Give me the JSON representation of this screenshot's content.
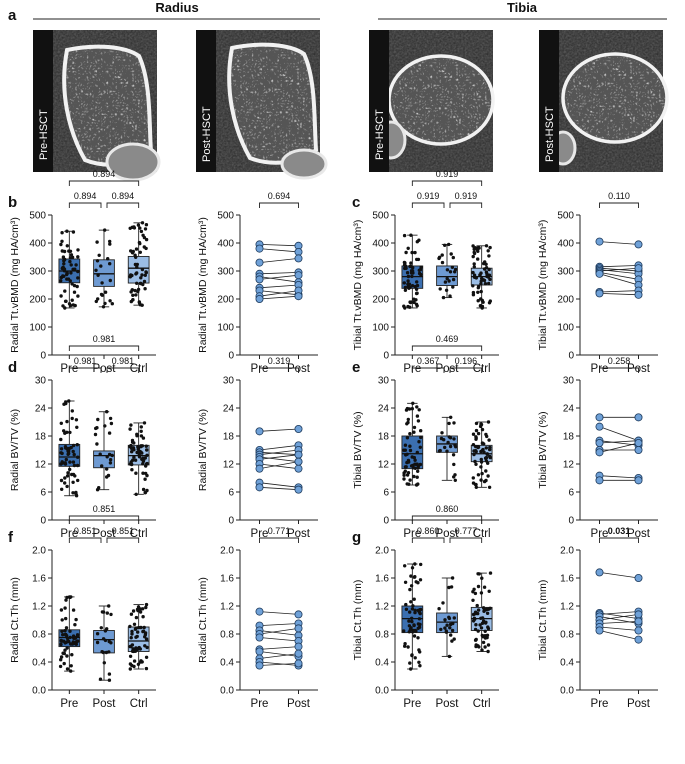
{
  "panel_a": {
    "letter": "a",
    "radius_label": "Radius",
    "tibia_label": "Tibia",
    "images": [
      {
        "group": "radius",
        "label": "Pre-HSCT"
      },
      {
        "group": "radius",
        "label": "Post-HSCT"
      },
      {
        "group": "tibia",
        "label": "Pre-HSCT"
      },
      {
        "group": "tibia",
        "label": "Post-HSCT"
      }
    ]
  },
  "colors": {
    "pre": "#3b6fb0",
    "post": "#6e9ad2",
    "ctrl": "#9bbde5",
    "paired": "#6fa1d8"
  },
  "chart_data": [
    {
      "id": "b-box",
      "panel": "b",
      "type": "box",
      "ylabel": "Radial Tt.vBMD (mg HA/cm³)",
      "ylim": [
        0,
        500
      ],
      "yticks": [
        0,
        100,
        200,
        300,
        400,
        500
      ],
      "categories": [
        "Pre",
        "Post",
        "Ctrl"
      ],
      "boxes": [
        {
          "min": 168,
          "q1": 258,
          "median": 300,
          "q3": 343,
          "max": 442,
          "n": 60
        },
        {
          "min": 172,
          "q1": 245,
          "median": 290,
          "q3": 340,
          "max": 446,
          "n": 22
        },
        {
          "min": 178,
          "q1": 257,
          "median": 310,
          "q3": 352,
          "max": 472,
          "n": 60
        }
      ],
      "pvalues": [
        {
          "from": 0,
          "to": 1,
          "label": "0.894",
          "bold": false
        },
        {
          "from": 1,
          "to": 2,
          "label": "0.894",
          "bold": false
        },
        {
          "from": 0,
          "to": 2,
          "label": "0.894",
          "bold": false
        }
      ]
    },
    {
      "id": "b-paired",
      "panel": "",
      "type": "paired",
      "ylabel": "Radial Tt.vBMD (mg HA/cm³)",
      "ylim": [
        0,
        500
      ],
      "yticks": [
        0,
        100,
        200,
        300,
        400,
        500
      ],
      "categories": [
        "Pre",
        "Post"
      ],
      "pairs": [
        [
          395,
          390
        ],
        [
          380,
          368
        ],
        [
          330,
          345
        ],
        [
          290,
          295
        ],
        [
          280,
          260
        ],
        [
          270,
          285
        ],
        [
          240,
          250
        ],
        [
          230,
          215
        ],
        [
          210,
          230
        ],
        [
          200,
          210
        ]
      ],
      "pvalues": [
        {
          "from": 0,
          "to": 1,
          "label": "0.694",
          "bold": false
        }
      ]
    },
    {
      "id": "c-box",
      "panel": "c",
      "type": "box",
      "ylabel": "Tibial Tt.vBMD (mg HA/cm³)",
      "ylim": [
        0,
        500
      ],
      "yticks": [
        0,
        100,
        200,
        300,
        400,
        500
      ],
      "categories": [
        "Pre",
        "Post",
        "Ctrl"
      ],
      "boxes": [
        {
          "min": 168,
          "q1": 238,
          "median": 280,
          "q3": 318,
          "max": 428,
          "n": 60
        },
        {
          "min": 205,
          "q1": 248,
          "median": 280,
          "q3": 318,
          "max": 395,
          "n": 22
        },
        {
          "min": 168,
          "q1": 250,
          "median": 280,
          "q3": 310,
          "max": 390,
          "n": 60
        }
      ],
      "pvalues": [
        {
          "from": 0,
          "to": 1,
          "label": "0.919",
          "bold": false
        },
        {
          "from": 1,
          "to": 2,
          "label": "0.919",
          "bold": false
        },
        {
          "from": 0,
          "to": 2,
          "label": "0.919",
          "bold": false
        }
      ]
    },
    {
      "id": "c-paired",
      "panel": "",
      "type": "paired",
      "ylabel": "Tibial Tt.vBMD (mg HA/cm³)",
      "ylim": [
        0,
        500
      ],
      "yticks": [
        0,
        100,
        200,
        300,
        400,
        500
      ],
      "categories": [
        "Pre",
        "Post"
      ],
      "pairs": [
        [
          405,
          395
        ],
        [
          315,
          320
        ],
        [
          310,
          300
        ],
        [
          305,
          290
        ],
        [
          300,
          310
        ],
        [
          295,
          270
        ],
        [
          290,
          250
        ],
        [
          225,
          230
        ],
        [
          220,
          215
        ]
      ],
      "pvalues": [
        {
          "from": 0,
          "to": 1,
          "label": "0.110",
          "bold": false
        }
      ]
    },
    {
      "id": "d-box",
      "panel": "d",
      "type": "box",
      "ylabel": "Radial BV/TV (%)",
      "ylim": [
        0,
        30
      ],
      "yticks": [
        0,
        6,
        12,
        18,
        24,
        30
      ],
      "categories": [
        "Pre",
        "Post",
        "Ctrl"
      ],
      "boxes": [
        {
          "min": 5.2,
          "q1": 11.5,
          "median": 13.5,
          "q3": 16.2,
          "max": 25.5,
          "n": 60
        },
        {
          "min": 6.5,
          "q1": 11.2,
          "median": 13.8,
          "q3": 14.8,
          "max": 23.2,
          "n": 22
        },
        {
          "min": 5.5,
          "q1": 11.8,
          "median": 13.8,
          "q3": 16.0,
          "max": 20.8,
          "n": 60
        }
      ],
      "pvalues": [
        {
          "from": 0,
          "to": 1,
          "label": "0.981",
          "bold": false
        },
        {
          "from": 1,
          "to": 2,
          "label": "0.981",
          "bold": false
        },
        {
          "from": 0,
          "to": 2,
          "label": "0.981",
          "bold": false
        }
      ]
    },
    {
      "id": "d-paired",
      "panel": "",
      "type": "paired",
      "ylabel": "Radial BV/TV (%)",
      "ylim": [
        0,
        30
      ],
      "yticks": [
        0,
        6,
        12,
        18,
        24,
        30
      ],
      "categories": [
        "Pre",
        "Post"
      ],
      "pairs": [
        [
          19.0,
          19.5
        ],
        [
          15.0,
          16.0
        ],
        [
          14.5,
          14.0
        ],
        [
          14.0,
          15.0
        ],
        [
          13.5,
          12.5
        ],
        [
          13.0,
          14.0
        ],
        [
          12.0,
          11.0
        ],
        [
          11.0,
          12.5
        ],
        [
          8.0,
          7.0
        ],
        [
          7.0,
          6.5
        ]
      ],
      "pvalues": [
        {
          "from": 0,
          "to": 1,
          "label": "0.319",
          "bold": false
        }
      ]
    },
    {
      "id": "e-box",
      "panel": "e",
      "type": "box",
      "ylabel": "Tibial BV/TV (%)",
      "ylim": [
        0,
        30
      ],
      "yticks": [
        0,
        6,
        12,
        18,
        24,
        30
      ],
      "categories": [
        "Pre",
        "Post",
        "Ctrl"
      ],
      "boxes": [
        {
          "min": 7.5,
          "q1": 11.0,
          "median": 14.2,
          "q3": 18.0,
          "max": 25.0,
          "n": 60
        },
        {
          "min": 8.5,
          "q1": 14.5,
          "median": 16.3,
          "q3": 18.0,
          "max": 22.0,
          "n": 22
        },
        {
          "min": 7.0,
          "q1": 12.5,
          "median": 14.2,
          "q3": 16.0,
          "max": 21.0,
          "n": 60
        }
      ],
      "pvalues": [
        {
          "from": 0,
          "to": 1,
          "label": "0.367",
          "bold": false
        },
        {
          "from": 1,
          "to": 2,
          "label": "0.196",
          "bold": false
        },
        {
          "from": 0,
          "to": 2,
          "label": "0.469",
          "bold": false
        }
      ]
    },
    {
      "id": "e-paired",
      "panel": "",
      "type": "paired",
      "ylabel": "Tibial BV/TV (%)",
      "ylim": [
        0,
        30
      ],
      "yticks": [
        0,
        6,
        12,
        18,
        24,
        30
      ],
      "categories": [
        "Pre",
        "Post"
      ],
      "pairs": [
        [
          22.0,
          22.0
        ],
        [
          20.0,
          17.0
        ],
        [
          17.0,
          16.0
        ],
        [
          16.5,
          17.0
        ],
        [
          15.0,
          15.0
        ],
        [
          14.5,
          16.5
        ],
        [
          9.5,
          9.0
        ],
        [
          8.5,
          8.5
        ]
      ],
      "pvalues": [
        {
          "from": 0,
          "to": 1,
          "label": "0.258",
          "bold": false
        }
      ]
    },
    {
      "id": "f-box",
      "panel": "f",
      "type": "box",
      "ylabel": "Radial Ct.Th (mm)",
      "ylim": [
        0,
        2.0
      ],
      "yticks": [
        0,
        0.4,
        0.8,
        1.2,
        1.6,
        2.0
      ],
      "categories": [
        "Pre",
        "Post",
        "Ctrl"
      ],
      "boxes": [
        {
          "min": 0.27,
          "q1": 0.62,
          "median": 0.75,
          "q3": 0.86,
          "max": 1.33,
          "n": 60
        },
        {
          "min": 0.14,
          "q1": 0.53,
          "median": 0.72,
          "q3": 0.85,
          "max": 1.2,
          "n": 22
        },
        {
          "min": 0.3,
          "q1": 0.55,
          "median": 0.7,
          "q3": 0.9,
          "max": 1.22,
          "n": 60
        }
      ],
      "pvalues": [
        {
          "from": 0,
          "to": 1,
          "label": "0.851",
          "bold": false
        },
        {
          "from": 1,
          "to": 2,
          "label": "0.851",
          "bold": false
        },
        {
          "from": 0,
          "to": 2,
          "label": "0.851",
          "bold": false
        }
      ]
    },
    {
      "id": "f-paired",
      "panel": "",
      "type": "paired",
      "ylabel": "Radial Ct.Th (mm)",
      "ylim": [
        0,
        2.0
      ],
      "yticks": [
        0,
        0.4,
        0.8,
        1.2,
        1.6,
        2.0
      ],
      "categories": [
        "Pre",
        "Post"
      ],
      "pairs": [
        [
          1.12,
          1.08
        ],
        [
          0.92,
          0.95
        ],
        [
          0.85,
          0.78
        ],
        [
          0.8,
          0.88
        ],
        [
          0.75,
          0.7
        ],
        [
          0.58,
          0.62
        ],
        [
          0.55,
          0.48
        ],
        [
          0.45,
          0.52
        ],
        [
          0.4,
          0.35
        ],
        [
          0.35,
          0.38
        ]
      ],
      "pvalues": [
        {
          "from": 0,
          "to": 1,
          "label": "0.771",
          "bold": false
        }
      ]
    },
    {
      "id": "g-box",
      "panel": "g",
      "type": "box",
      "ylabel": "Tibial Ct.Th (mm)",
      "ylim": [
        0,
        2.0
      ],
      "yticks": [
        0,
        0.4,
        0.8,
        1.2,
        1.6,
        2.0
      ],
      "categories": [
        "Pre",
        "Post",
        "Ctrl"
      ],
      "boxes": [
        {
          "min": 0.3,
          "q1": 0.82,
          "median": 1.02,
          "q3": 1.2,
          "max": 1.8,
          "n": 60
        },
        {
          "min": 0.48,
          "q1": 0.82,
          "median": 0.97,
          "q3": 1.1,
          "max": 1.6,
          "n": 22
        },
        {
          "min": 0.55,
          "q1": 0.85,
          "median": 1.02,
          "q3": 1.18,
          "max": 1.67,
          "n": 60
        }
      ],
      "pvalues": [
        {
          "from": 0,
          "to": 1,
          "label": "0.860",
          "bold": false
        },
        {
          "from": 1,
          "to": 2,
          "label": "0.777",
          "bold": false
        },
        {
          "from": 0,
          "to": 2,
          "label": "0.860",
          "bold": false
        }
      ]
    },
    {
      "id": "g-paired",
      "panel": "",
      "type": "paired",
      "ylabel": "Tibial Ct.Th (mm)",
      "ylim": [
        0,
        2.0
      ],
      "yticks": [
        0,
        0.4,
        0.8,
        1.2,
        1.6,
        2.0
      ],
      "categories": [
        "Pre",
        "Post"
      ],
      "pairs": [
        [
          1.68,
          1.6
        ],
        [
          1.1,
          1.02
        ],
        [
          1.08,
          1.12
        ],
        [
          1.05,
          0.95
        ],
        [
          1.0,
          1.08
        ],
        [
          0.95,
          0.98
        ],
        [
          0.9,
          0.85
        ],
        [
          0.85,
          0.72
        ]
      ],
      "pvalues": [
        {
          "from": 0,
          "to": 1,
          "label": "0.031",
          "bold": true
        }
      ]
    }
  ]
}
